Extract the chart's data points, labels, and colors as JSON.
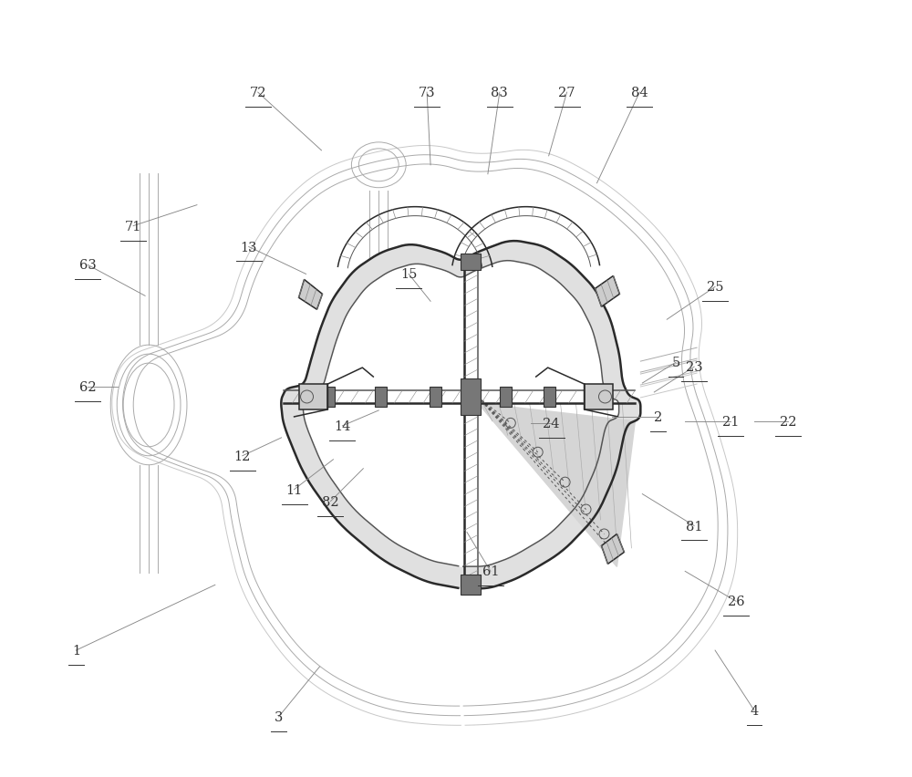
{
  "bg_color": "#ffffff",
  "line_dark": "#2a2a2a",
  "line_med": "#555555",
  "line_light": "#aaaaaa",
  "label_color": "#333333",
  "figsize": [
    10.0,
    8.53
  ],
  "dpi": 100,
  "label_specs": {
    "1": [
      0.82,
      1.38,
      2.35,
      2.1
    ],
    "2": [
      7.22,
      3.95,
      6.72,
      3.95
    ],
    "3": [
      3.05,
      0.65,
      3.5,
      1.2
    ],
    "4": [
      8.28,
      0.72,
      7.85,
      1.38
    ],
    "5": [
      7.42,
      4.55,
      7.05,
      4.32
    ],
    "11": [
      3.22,
      3.15,
      3.65,
      3.48
    ],
    "12": [
      2.65,
      3.52,
      3.08,
      3.72
    ],
    "13": [
      2.72,
      5.82,
      3.35,
      5.52
    ],
    "14": [
      3.75,
      3.85,
      4.15,
      4.02
    ],
    "15": [
      4.48,
      5.52,
      4.72,
      5.22
    ],
    "21": [
      8.02,
      3.9,
      7.52,
      3.9
    ],
    "22": [
      8.65,
      3.9,
      8.28,
      3.9
    ],
    "23": [
      7.62,
      4.5,
      7.18,
      4.22
    ],
    "24": [
      6.05,
      3.88,
      5.82,
      3.88
    ],
    "25": [
      7.85,
      5.38,
      7.32,
      5.02
    ],
    "26": [
      8.08,
      1.92,
      7.52,
      2.25
    ],
    "27": [
      6.22,
      7.52,
      6.02,
      6.82
    ],
    "61": [
      5.38,
      2.25,
      5.12,
      2.68
    ],
    "62": [
      0.95,
      4.28,
      1.28,
      4.28
    ],
    "63": [
      0.95,
      5.62,
      1.58,
      5.28
    ],
    "71": [
      1.45,
      6.05,
      2.15,
      6.28
    ],
    "72": [
      2.82,
      7.52,
      3.52,
      6.88
    ],
    "73": [
      4.68,
      7.52,
      4.72,
      6.72
    ],
    "81": [
      7.62,
      2.75,
      7.05,
      3.1
    ],
    "82": [
      3.62,
      3.02,
      3.98,
      3.38
    ],
    "83": [
      5.48,
      7.52,
      5.35,
      6.62
    ],
    "84": [
      7.02,
      7.52,
      6.55,
      6.52
    ]
  }
}
